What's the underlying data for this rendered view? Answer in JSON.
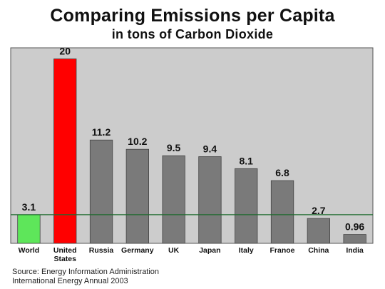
{
  "title": "Comparing Emissions per Capita",
  "subtitle": "in tons of Carbon Dioxide",
  "chart_data": {
    "type": "bar",
    "categories": [
      [
        "World"
      ],
      [
        "United",
        "States"
      ],
      [
        "Russia"
      ],
      [
        "Germany"
      ],
      [
        "UK"
      ],
      [
        "Japan"
      ],
      [
        "Italy"
      ],
      [
        "Franoe"
      ],
      [
        "China"
      ],
      [
        "India"
      ]
    ],
    "values": [
      3.1,
      20,
      11.2,
      10.2,
      9.5,
      9.4,
      8.1,
      6.8,
      2.7,
      0.96
    ],
    "value_labels": [
      "3.1",
      "20",
      "11.2",
      "10.2",
      "9.5",
      "9.4",
      "8.1",
      "6.8",
      "2.7",
      "0.96"
    ],
    "bar_colors": [
      "#5ee65a",
      "#ff0000",
      "#7a7a7a",
      "#7a7a7a",
      "#7a7a7a",
      "#7a7a7a",
      "#7a7a7a",
      "#7a7a7a",
      "#7a7a7a",
      "#7a7a7a"
    ],
    "reference_line": {
      "value": 3.1,
      "color": "#1d6b2c"
    },
    "plot_background": "#cccccc",
    "ylim": [
      0,
      21.2
    ],
    "grid": false,
    "legend": "none"
  },
  "source": {
    "line1": "Source: Energy Information Administration",
    "line2": "International Energy Annual 2003"
  }
}
